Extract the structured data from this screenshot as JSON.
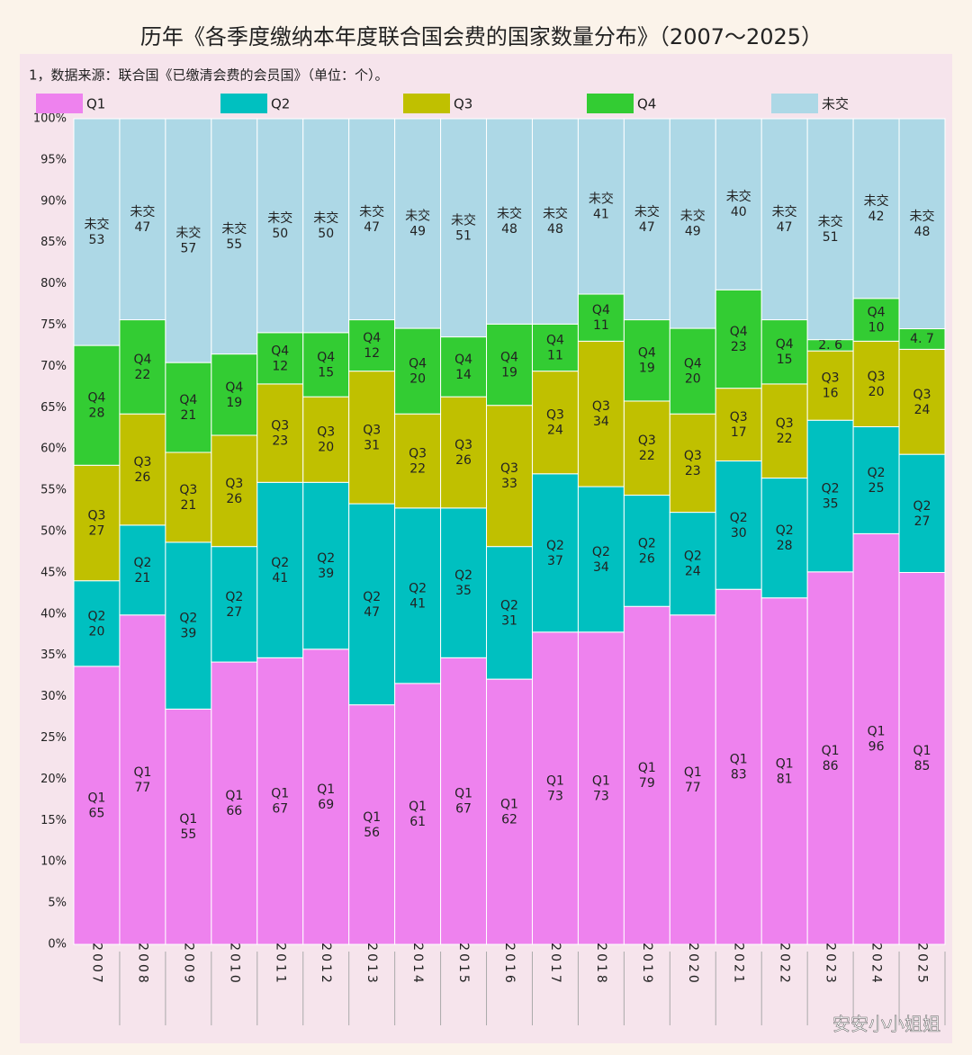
{
  "chart_data": {
    "type": "stacked_bar_percent",
    "title": "历年《各季度缴纳本年度联合国会费的国家数量分布》（2007～2025）",
    "note": "1，数据来源：联合国《已缴清会费的会员国》（单位：个）。",
    "watermark": "安安小小姐姐",
    "categories": [
      "2007",
      "2008",
      "2009",
      "2010",
      "2011",
      "2012",
      "2013",
      "2014",
      "2015",
      "2016",
      "2017",
      "2018",
      "2019",
      "2020",
      "2021",
      "2022",
      "2023",
      "2024",
      "2025"
    ],
    "series": [
      {
        "name": "Q1",
        "color": "#ee82ee",
        "values": [
          65,
          77,
          55,
          66,
          67,
          69,
          56,
          61,
          67,
          62,
          73,
          73,
          79,
          77,
          83,
          81,
          86,
          96,
          85
        ]
      },
      {
        "name": "Q2",
        "color": "#00c0c0",
        "values": [
          20,
          21,
          39,
          27,
          41,
          39,
          47,
          41,
          35,
          31,
          37,
          34,
          26,
          24,
          30,
          28,
          35,
          25,
          27
        ]
      },
      {
        "name": "Q3",
        "color": "#c0c000",
        "values": [
          27,
          26,
          21,
          26,
          23,
          20,
          31,
          22,
          26,
          33,
          24,
          34,
          22,
          23,
          17,
          22,
          16,
          20,
          24
        ]
      },
      {
        "name": "Q4",
        "color": "#33cc33",
        "values": [
          28,
          22,
          21,
          19,
          12,
          15,
          12,
          20,
          14,
          19,
          11,
          11,
          19,
          20,
          23,
          15,
          2.6,
          10,
          4.7
        ],
        "value_labels": [
          null,
          null,
          null,
          null,
          null,
          null,
          null,
          null,
          null,
          null,
          null,
          null,
          null,
          null,
          null,
          null,
          "2. 6",
          null,
          "4. 7"
        ]
      },
      {
        "name": "未交",
        "color": "#add8e6",
        "values": [
          53,
          47,
          57,
          55,
          50,
          50,
          47,
          49,
          51,
          48,
          48,
          41,
          47,
          49,
          40,
          47,
          51,
          42,
          48
        ]
      }
    ],
    "ylim": [
      0,
      100
    ],
    "yticks": [
      {
        "value": 0,
        "label": "0%"
      },
      {
        "value": 5,
        "label": "5%"
      },
      {
        "value": 10,
        "label": "10%"
      },
      {
        "value": 15,
        "label": "15%"
      },
      {
        "value": 20,
        "label": "20%"
      },
      {
        "value": 25,
        "label": "25%"
      },
      {
        "value": 30,
        "label": "30%"
      },
      {
        "value": 35,
        "label": "35%"
      },
      {
        "value": 40,
        "label": "40%"
      },
      {
        "value": 45,
        "label": "45%"
      },
      {
        "value": 50,
        "label": "50%"
      },
      {
        "value": 55,
        "label": "55%"
      },
      {
        "value": 60,
        "label": "60%"
      },
      {
        "value": 65,
        "label": "65%"
      },
      {
        "value": 70,
        "label": "70%"
      },
      {
        "value": 75,
        "label": "75%"
      },
      {
        "value": 80,
        "label": "80%"
      },
      {
        "value": 85,
        "label": "85%"
      },
      {
        "value": 90,
        "label": "90%"
      },
      {
        "value": 95,
        "label": "95%"
      },
      {
        "value": 100,
        "label": "100%"
      }
    ],
    "grid": true
  }
}
